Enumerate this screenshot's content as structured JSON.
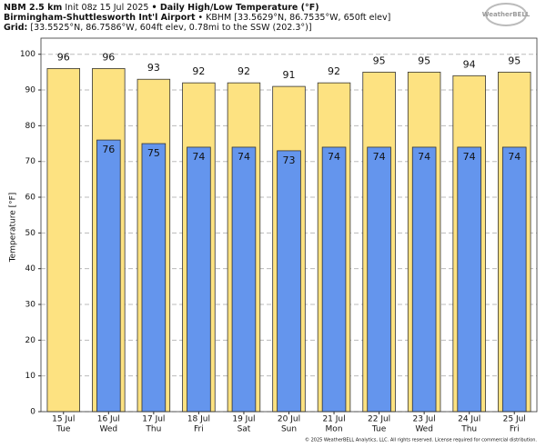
{
  "header": {
    "model": "NBM 2.5 km",
    "init": "Init 08z 15 Jul 2025",
    "product": "• Daily High/Low Temperature (°F)",
    "station": "Birmingham-Shuttlesworth Int'l Airport",
    "station_info": "• KBHM [33.5629°N, 86.7535°W, 650ft elev]",
    "grid_label": "Grid:",
    "grid_info": "[33.5525°N, 86.7586°W, 604ft elev, 0.78mi to the SSW (202.3°)]",
    "logo": "WeatherBELL"
  },
  "footer": "© 2025 WeatherBELL Analytics, LLC. All rights reserved. License required for commercial distribution.",
  "chart_data": {
    "type": "bar",
    "ylabel": "Temperature [°F]",
    "categories": [
      "15 Jul",
      "16 Jul",
      "17 Jul",
      "18 Jul",
      "19 Jul",
      "20 Jul",
      "21 Jul",
      "22 Jul",
      "23 Jul",
      "24 Jul",
      "25 Jul"
    ],
    "weekdays": [
      "Tue",
      "Wed",
      "Thu",
      "Fri",
      "Sat",
      "Sun",
      "Mon",
      "Tue",
      "Wed",
      "Thu",
      "Fri"
    ],
    "series": [
      {
        "color": "#fde281",
        "values": [
          96,
          96,
          93,
          92,
          92,
          91,
          92,
          95,
          95,
          94,
          95
        ]
      },
      {
        "color": "#6495ed",
        "values": [
          null,
          76,
          75,
          74,
          74,
          73,
          74,
          74,
          74,
          74,
          74
        ]
      }
    ],
    "ylim": [
      0,
      104.5
    ],
    "yticks": [
      0,
      10,
      20,
      30,
      40,
      50,
      60,
      70,
      80,
      90,
      100
    ],
    "grid": true
  }
}
